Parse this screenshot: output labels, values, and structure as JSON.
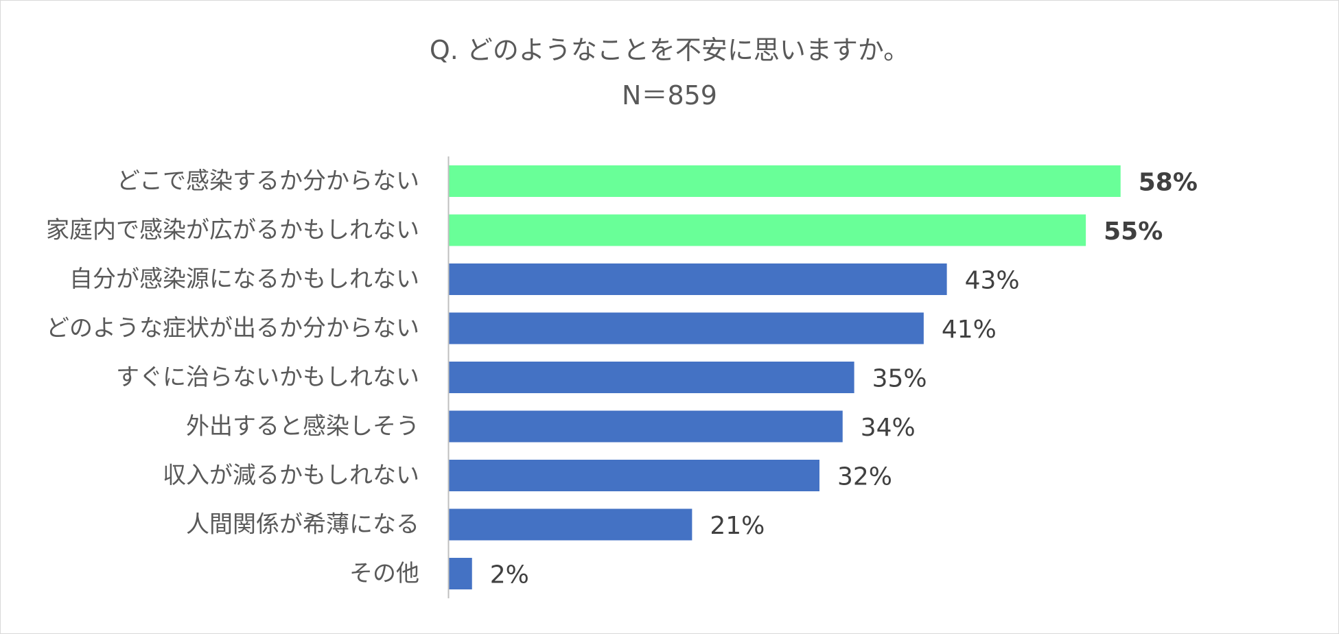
{
  "title": {
    "question": "Q.  どのようなことを不安に思いますか。",
    "n": "N＝859"
  },
  "chart_data": {
    "type": "bar",
    "orientation": "horizontal",
    "categories": [
      "どこで感染するか分からない",
      "家庭内で感染が広がるかもしれない",
      "自分が感染源になるかもしれない",
      "どのような症状が出るか分からない",
      "すぐに治らないかもしれない",
      "外出すると感染しそう",
      "収入が減るかもしれない",
      "人間関係が希薄になる",
      "その他"
    ],
    "values": [
      58,
      55,
      43,
      41,
      35,
      34,
      32,
      21,
      2
    ],
    "data_labels": [
      "58%",
      "55%",
      "43%",
      "41%",
      "35%",
      "34%",
      "32%",
      "21%",
      "2%"
    ],
    "highlighted": [
      true,
      true,
      false,
      false,
      false,
      false,
      false,
      false,
      false
    ],
    "colors": {
      "highlight": "#69ff98",
      "default": "#4472c4",
      "axis": "#bfbfbf"
    },
    "xlim": [
      0,
      64
    ],
    "grid": false,
    "legend": "none"
  }
}
